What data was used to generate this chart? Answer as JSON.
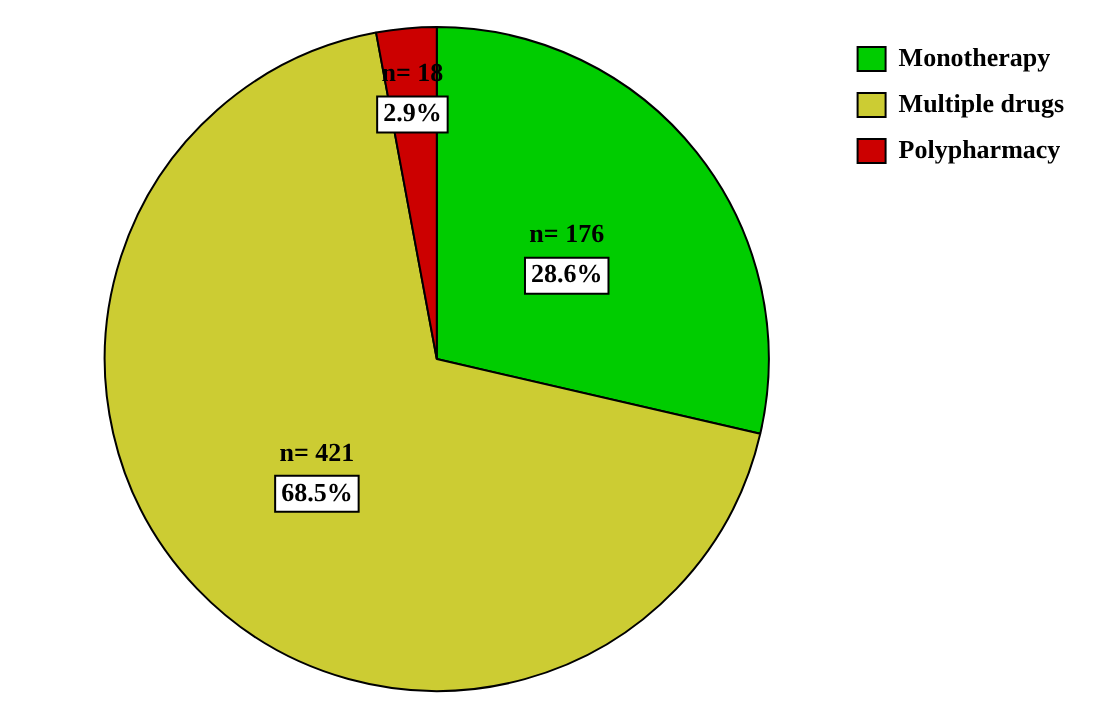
{
  "chart_data": {
    "type": "pie",
    "categories": [
      "Monotherapy",
      "Multiple drugs",
      "Polypharmacy"
    ],
    "values": [
      176,
      421,
      18
    ],
    "colors": [
      "#00cc00",
      "#cccc33",
      "#cc0000"
    ],
    "value_labels": [
      "n= 176\n28.6%",
      "n= 421\n68.5%",
      "n= 18\n2.9%"
    ],
    "legend": "top right"
  }
}
